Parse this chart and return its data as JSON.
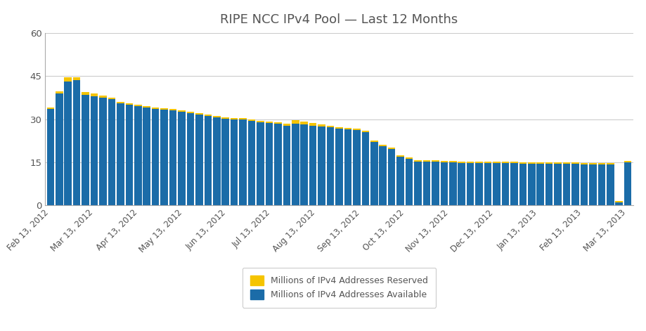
{
  "title": "RIPE NCC IPv4 Pool — Last 12 Months",
  "title_color": "#555555",
  "bar_color_available": "#1b6ca8",
  "bar_color_reserved": "#f5c400",
  "legend_label_reserved": "Millions of IPv4 Addresses Reserved",
  "legend_label_available": "Millions of IPv4 Addresses Available",
  "ylim": [
    0,
    60
  ],
  "yticks": [
    0,
    15,
    30,
    45,
    60
  ],
  "x_tick_labels": [
    "Feb 13, 2012",
    "Mar 13, 2012",
    "Apr 13, 2012",
    "May 13, 2012",
    "Jun 13, 2012",
    "Jul 13, 2012",
    "Aug 13, 2012",
    "Sep 13, 2012",
    "Oct 13, 2012",
    "Nov 13, 2012",
    "Dec 13, 2012",
    "Jan 13, 2013",
    "Feb 13, 2013",
    "Mar 13, 2013"
  ],
  "available": [
    33.5,
    39.0,
    43.0,
    43.5,
    38.5,
    38.0,
    37.5,
    37.0,
    35.5,
    35.0,
    34.5,
    34.0,
    33.5,
    33.2,
    33.0,
    32.5,
    32.0,
    31.5,
    31.0,
    30.7,
    30.2,
    30.0,
    29.8,
    29.4,
    29.0,
    28.7,
    28.3,
    27.8,
    28.5,
    28.2,
    27.8,
    27.5,
    27.2,
    26.8,
    26.5,
    26.2,
    25.5,
    22.0,
    20.5,
    19.5,
    17.0,
    16.2,
    15.3,
    15.1,
    15.1,
    14.9,
    14.9,
    14.8,
    14.8,
    14.8,
    14.8,
    14.7,
    14.6,
    14.6,
    14.5,
    14.5,
    14.5,
    14.5,
    14.5,
    14.4,
    14.4,
    14.3,
    14.3,
    14.3,
    14.3,
    1.0,
    15.0
  ],
  "reserved": [
    0.5,
    0.7,
    1.5,
    1.2,
    1.0,
    1.0,
    0.8,
    0.6,
    0.5,
    0.5,
    0.5,
    0.5,
    0.5,
    0.5,
    0.5,
    0.5,
    0.5,
    0.5,
    0.5,
    0.5,
    0.5,
    0.5,
    0.5,
    0.5,
    0.5,
    0.5,
    0.5,
    0.5,
    1.2,
    1.0,
    0.8,
    0.7,
    0.5,
    0.5,
    0.5,
    0.5,
    0.5,
    0.5,
    0.5,
    0.5,
    0.5,
    0.5,
    0.5,
    0.5,
    0.5,
    0.5,
    0.5,
    0.5,
    0.5,
    0.5,
    0.5,
    0.5,
    0.5,
    0.5,
    0.5,
    0.5,
    0.5,
    0.5,
    0.5,
    0.5,
    0.5,
    0.5,
    0.5,
    0.5,
    0.5,
    0.5,
    0.5
  ]
}
